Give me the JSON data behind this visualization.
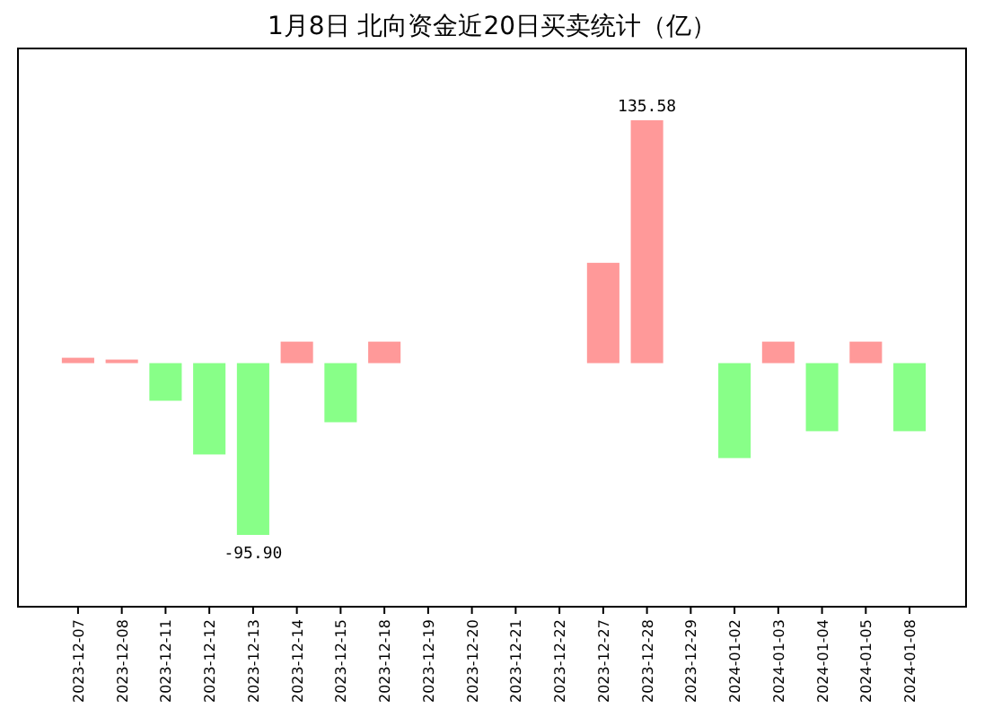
{
  "chart_data": {
    "type": "bar",
    "title": "1月8日  北向资金近20日买卖统计（亿）",
    "categories": [
      "2023-12-07",
      "2023-12-08",
      "2023-12-11",
      "2023-12-12",
      "2023-12-13",
      "2023-12-14",
      "2023-12-15",
      "2023-12-18",
      "2023-12-19",
      "2023-12-20",
      "2023-12-21",
      "2023-12-22",
      "2023-12-27",
      "2023-12-28",
      "2023-12-29",
      "2024-01-02",
      "2024-01-03",
      "2024-01-04",
      "2024-01-05",
      "2024-01-08"
    ],
    "values": [
      3,
      2,
      -21,
      -51,
      -95.9,
      12,
      -33,
      12,
      null,
      null,
      null,
      null,
      56,
      135.58,
      null,
      -53,
      12,
      -38,
      12,
      -38
    ],
    "colors": [
      "#ff9999",
      "#ff9999",
      "#88ff88",
      "#88ff88",
      "#88ff88",
      "#ff9999",
      "#88ff88",
      "#ff9999",
      null,
      null,
      null,
      null,
      "#ff9999",
      "#ff9999",
      null,
      "#88ff88",
      "#ff9999",
      "#88ff88",
      "#ff9999",
      "#88ff88"
    ],
    "value_labels": [
      null,
      null,
      null,
      null,
      "-95.90",
      null,
      null,
      null,
      null,
      null,
      null,
      null,
      null,
      "135.58",
      null,
      null,
      null,
      null,
      null,
      null
    ]
  }
}
